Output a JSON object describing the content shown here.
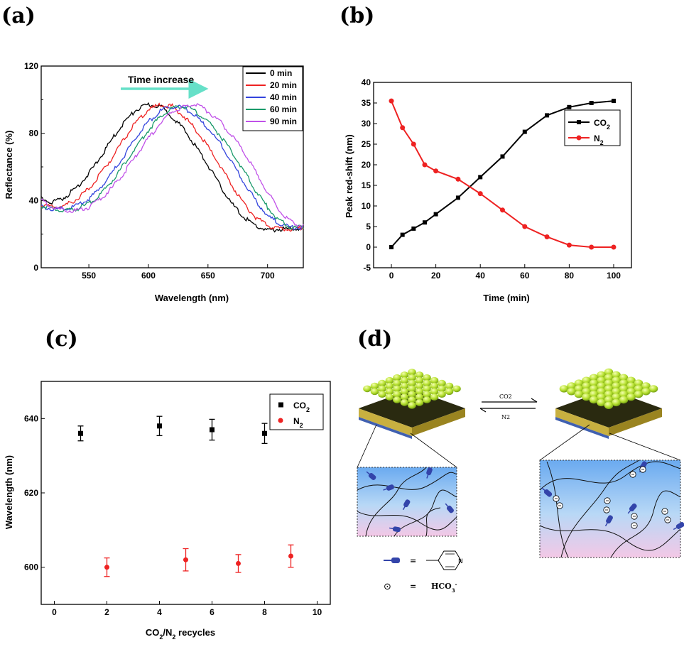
{
  "panel_labels": {
    "a": "(a)",
    "b": "(b)",
    "c": "(c)",
    "d": "(d)"
  },
  "colors": {
    "black": "#000000",
    "red": "#ee2222",
    "blue": "#3344dd",
    "green": "#1a9a6a",
    "violet": "#c050e8",
    "cyan": "#66e0c8"
  },
  "chart_data": [
    {
      "id": "a",
      "type": "line",
      "title": "",
      "xlabel": "Wavelength (nm)",
      "ylabel": "Reflectance (%)",
      "xlim": [
        510,
        730
      ],
      "ylim": [
        0,
        120
      ],
      "xticks": [
        550,
        600,
        650,
        700
      ],
      "yticks": [
        0,
        40,
        80,
        120
      ],
      "annotation": "Time increase",
      "legend_position": "top-right",
      "x": [
        510,
        520,
        530,
        540,
        550,
        560,
        570,
        580,
        590,
        600,
        610,
        620,
        630,
        640,
        650,
        660,
        670,
        680,
        690,
        700,
        710,
        720,
        730
      ],
      "series": [
        {
          "name": "0 min",
          "color": "#000000",
          "values": [
            41,
            39,
            42,
            48,
            56,
            66,
            77,
            87,
            94,
            97,
            96,
            90,
            82,
            72,
            61,
            49,
            38,
            30,
            25,
            22,
            23,
            23,
            24
          ]
        },
        {
          "name": "20 min",
          "color": "#ee2222",
          "values": [
            37,
            36,
            37,
            41,
            47,
            56,
            66,
            77,
            87,
            94,
            97,
            96,
            90,
            82,
            72,
            61,
            49,
            38,
            30,
            25,
            23,
            23,
            24
          ]
        },
        {
          "name": "40 min",
          "color": "#3344dd",
          "values": [
            36,
            35,
            35,
            37,
            41,
            48,
            57,
            67,
            78,
            87,
            93,
            96,
            95,
            90,
            83,
            74,
            63,
            51,
            40,
            31,
            26,
            24,
            24
          ]
        },
        {
          "name": "60 min",
          "color": "#1a9a6a",
          "values": [
            37,
            35,
            34,
            35,
            38,
            44,
            52,
            62,
            72,
            82,
            90,
            95,
            96,
            93,
            87,
            79,
            69,
            58,
            46,
            36,
            28,
            24,
            24
          ]
        },
        {
          "name": "90 min",
          "color": "#c050e8",
          "values": [
            40,
            36,
            34,
            34,
            36,
            41,
            48,
            57,
            67,
            77,
            86,
            93,
            96,
            97,
            93,
            87,
            79,
            69,
            57,
            45,
            34,
            27,
            25
          ]
        }
      ]
    },
    {
      "id": "b",
      "type": "line",
      "title": "",
      "xlabel": "Time (min)",
      "ylabel": "Peak red-shift (nm)",
      "xlim": [
        -8,
        108
      ],
      "ylim": [
        -5,
        40
      ],
      "xticks": [
        0,
        20,
        40,
        60,
        80,
        100
      ],
      "yticks": [
        -5,
        0,
        5,
        10,
        15,
        20,
        25,
        30,
        35,
        40
      ],
      "legend_position": "top-right",
      "x": [
        0,
        5,
        10,
        15,
        20,
        30,
        40,
        50,
        60,
        70,
        80,
        90,
        100
      ],
      "series": [
        {
          "name": "CO",
          "sub": "2",
          "color": "#000000",
          "marker": "square",
          "values": [
            0,
            3,
            4.5,
            6,
            8,
            12,
            17,
            22,
            28,
            32,
            34,
            35,
            35.5
          ]
        },
        {
          "name": "N",
          "sub": "2",
          "color": "#ee2222",
          "marker": "circle",
          "values": [
            35.5,
            29,
            25,
            20,
            18.5,
            16.5,
            13,
            9,
            5,
            2.5,
            0.5,
            0,
            0
          ]
        }
      ]
    },
    {
      "id": "c",
      "type": "scatter",
      "title": "",
      "xlabel": "CO",
      "xlabel_sub1": "2",
      "xlabel_mid": "/N",
      "xlabel_sub2": "2",
      "xlabel_tail": " recycles",
      "ylabel": "Wavelength (nm)",
      "xlim": [
        -0.5,
        10.5
      ],
      "ylim": [
        590,
        650
      ],
      "xticks": [
        0,
        2,
        4,
        6,
        8,
        10
      ],
      "yticks": [
        600,
        620,
        640
      ],
      "legend_position": "top-right",
      "series": [
        {
          "name": "CO",
          "sub": "2",
          "color": "#000000",
          "marker": "square",
          "x": [
            1,
            4,
            6,
            8
          ],
          "y": [
            636,
            638,
            637,
            636
          ],
          "err": [
            2,
            2.6,
            2.8,
            2.7
          ]
        },
        {
          "name": "N",
          "sub": "2",
          "color": "#ee2222",
          "marker": "circle",
          "x": [
            2,
            5,
            7,
            9
          ],
          "y": [
            600,
            602,
            601,
            603
          ],
          "err": [
            2.5,
            3,
            2.4,
            3
          ]
        }
      ]
    }
  ],
  "schematic": {
    "arrow_forward": "CO2",
    "arrow_back": "N2",
    "pyridine_eq": "=",
    "bicarbonate_eq": "=",
    "bicarbonate_symbol": "⊙",
    "bicarbonate_label": "HCO",
    "bicarbonate_sup": "3",
    "bicarbonate_charge": "-"
  }
}
